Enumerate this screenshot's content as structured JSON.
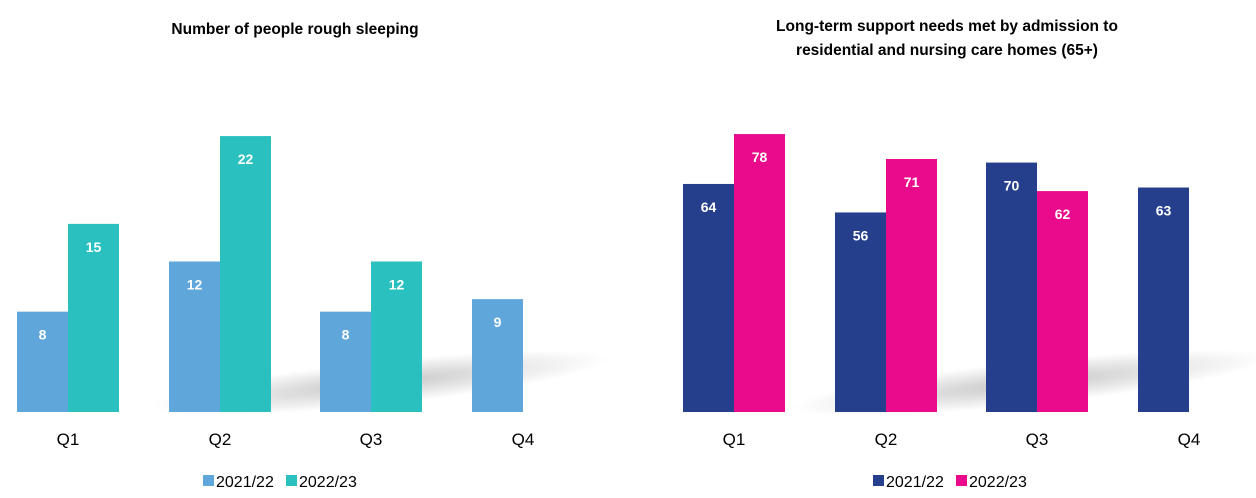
{
  "chart_data": [
    {
      "type": "bar",
      "title": "Number of people rough sleeping",
      "categories": [
        "Q1",
        "Q2",
        "Q3",
        "Q4"
      ],
      "series": [
        {
          "name": "2021/22",
          "color": "#5fa6da",
          "values": [
            8,
            12,
            8,
            9
          ]
        },
        {
          "name": "2022/23",
          "color": "#2ac0bf",
          "values": [
            15,
            22,
            12,
            null
          ]
        }
      ],
      "ylim": [
        0,
        24
      ],
      "grid": false,
      "legend": "bottom",
      "xlabel": "",
      "ylabel": ""
    },
    {
      "type": "bar",
      "title": "Long-term support needs met by admission to residential and nursing care homes (65+)",
      "title_lines": [
        "Long-term support needs met by admission to",
        "residential and nursing care homes (65+)"
      ],
      "categories": [
        "Q1",
        "Q2",
        "Q3",
        "Q4"
      ],
      "series": [
        {
          "name": "2021/22",
          "color": "#263f8c",
          "values": [
            64,
            56,
            70,
            63
          ]
        },
        {
          "name": "2022/23",
          "color": "#ea0a8c",
          "values": [
            78,
            71,
            62,
            null
          ]
        }
      ],
      "ylim": [
        0,
        87
      ],
      "grid": false,
      "legend": "bottom",
      "xlabel": "",
      "ylabel": ""
    }
  ]
}
